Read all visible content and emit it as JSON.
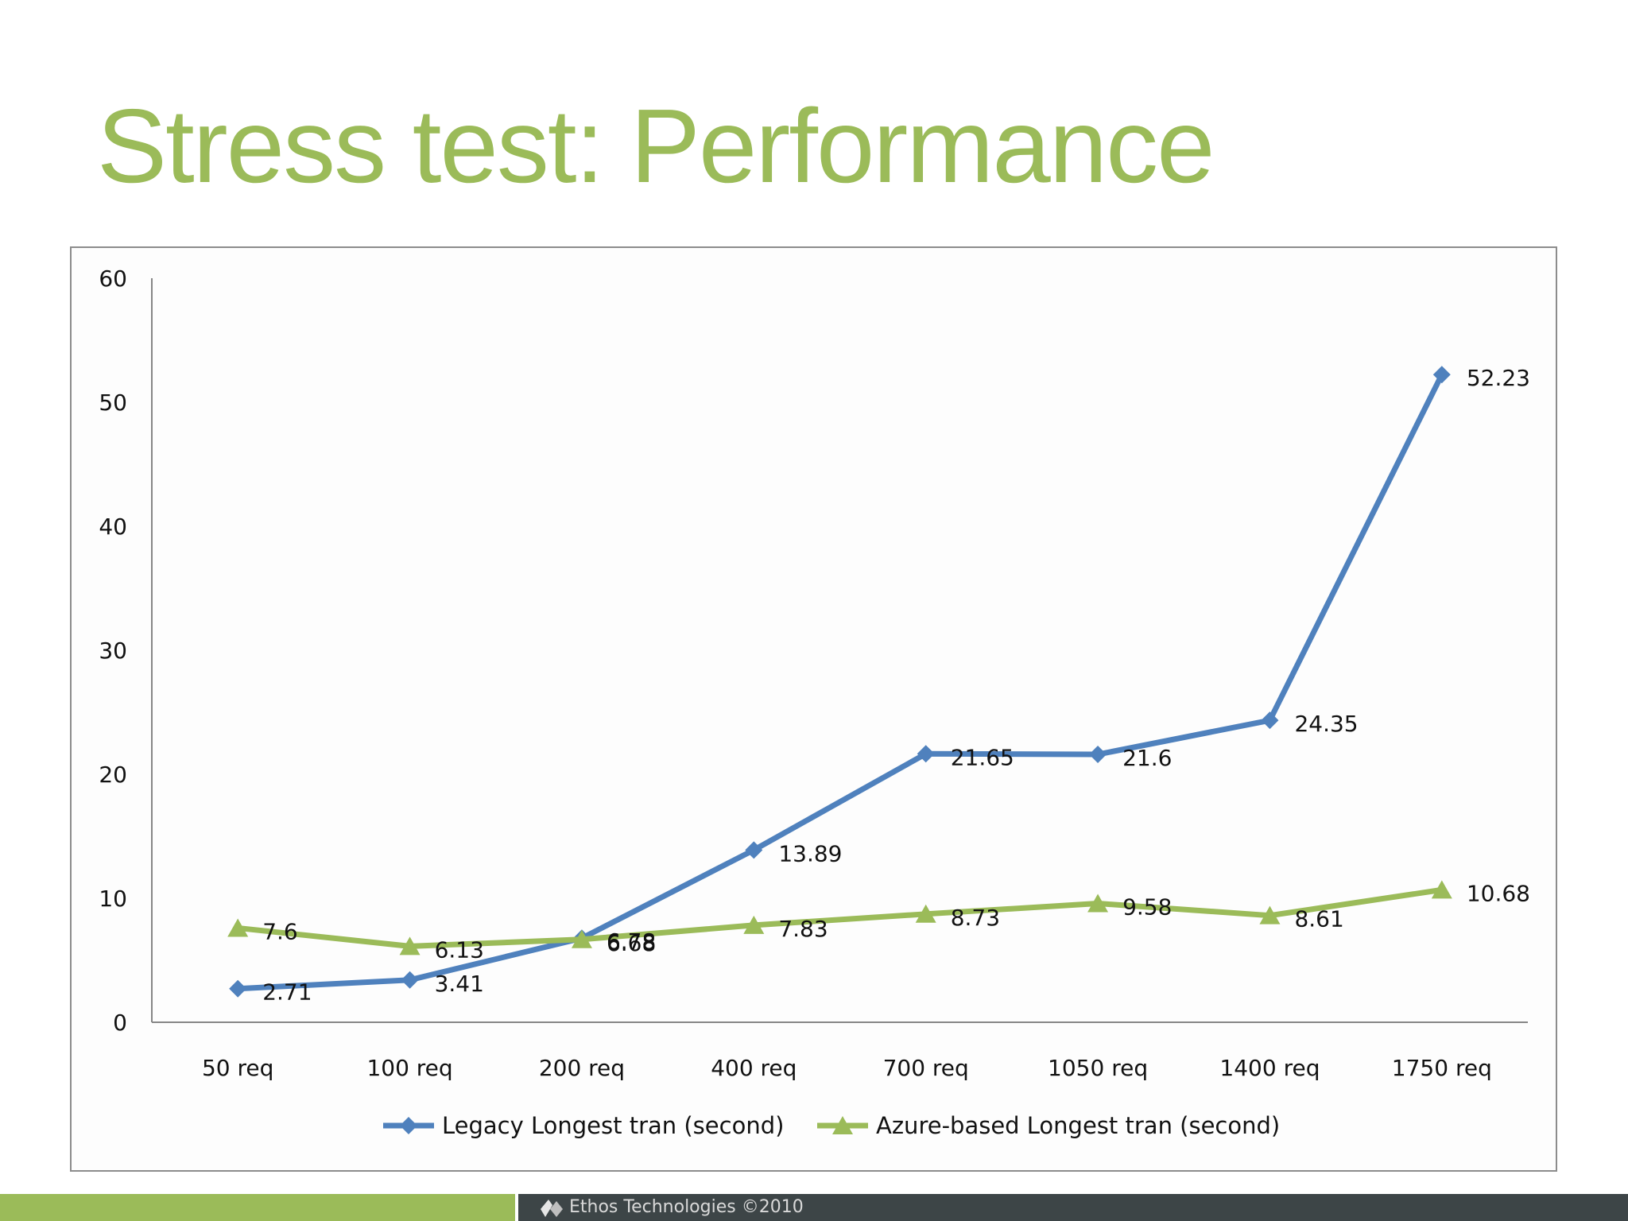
{
  "slide": {
    "title": "Stress test: Performance",
    "footer_text": "Ethos Technologies ©2010",
    "colors": {
      "title": "#9bbb59",
      "footer_green": "#9bbb59",
      "footer_dark": "#3d4547"
    }
  },
  "chart_data": {
    "type": "line",
    "categories": [
      "50 req",
      "100 req",
      "200 req",
      "400 req",
      "700 req",
      "1050 req",
      "1400 req",
      "1750 req"
    ],
    "ylim": [
      0,
      60
    ],
    "yticks": [
      0,
      10,
      20,
      30,
      40,
      50,
      60
    ],
    "grid": false,
    "legend": "bottom",
    "series": [
      {
        "name": "Legacy Longest tran (second)",
        "values": [
          2.71,
          3.41,
          6.78,
          13.89,
          21.65,
          21.6,
          24.35,
          52.23
        ],
        "labels": [
          "2.71",
          "3.41",
          "6.78",
          "13.89",
          "21.65",
          "21.6",
          "24.35",
          "52.23"
        ],
        "color": "#4f81bd",
        "marker": "diamond"
      },
      {
        "name": "Azure-based Longest tran (second)",
        "values": [
          7.6,
          6.13,
          6.68,
          7.83,
          8.73,
          9.58,
          8.61,
          10.68
        ],
        "labels": [
          "7.6",
          "6.13",
          "6.68",
          "7.83",
          "8.73",
          "9.58",
          "8.61",
          "10.68"
        ],
        "color": "#9bbb59",
        "marker": "triangle"
      }
    ]
  }
}
